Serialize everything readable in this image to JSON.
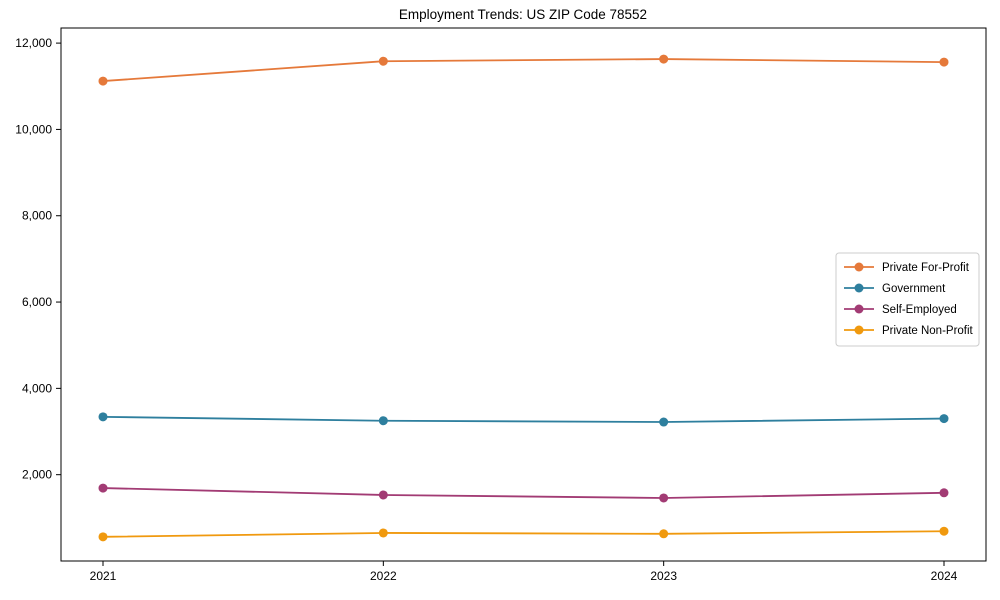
{
  "window": {
    "title": "Employment Trends: US ZIP Code 78552"
  },
  "chart_data": {
    "type": "line",
    "title": "Employment Trends: US ZIP Code 78552",
    "categories": [
      "2021",
      "2022",
      "2023",
      "2024"
    ],
    "series": [
      {
        "name": "Private For-Profit",
        "color": "#e5793a",
        "values": [
          11120,
          11580,
          11630,
          11560
        ]
      },
      {
        "name": "Government",
        "color": "#2e7f9e",
        "values": [
          3340,
          3250,
          3220,
          3300
        ]
      },
      {
        "name": "Self-Employed",
        "color": "#a23b74",
        "values": [
          1690,
          1530,
          1460,
          1580
        ]
      },
      {
        "name": "Private Non-Profit",
        "color": "#f0990e",
        "values": [
          560,
          650,
          630,
          690
        ]
      }
    ],
    "xlabel": "",
    "ylabel": "",
    "ylim": [
      0,
      12350
    ],
    "yticks": [
      2000,
      4000,
      6000,
      8000,
      10000,
      12000
    ],
    "grid": false,
    "marker": "circle",
    "legend_position": "center right",
    "axis_color": "#000000",
    "legend_border_color": "#cccccc",
    "legend_background": "#ffffff"
  }
}
